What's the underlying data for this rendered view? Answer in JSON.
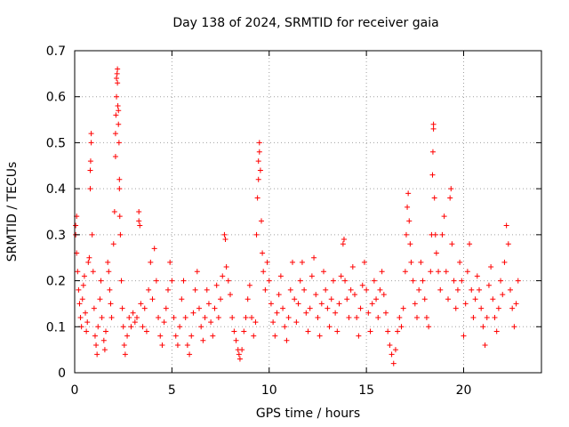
{
  "chart_data": {
    "type": "scatter",
    "title": "Day 138 of 2024, SRMTID for receiver gaia",
    "xlabel": "GPS time / hours",
    "ylabel": "SRMTID / TECUs",
    "xlim": [
      0,
      24
    ],
    "ylim": [
      0,
      0.7
    ],
    "x_ticks": [
      0,
      5,
      10,
      15,
      20
    ],
    "x_tick_labels": [
      "0",
      "5",
      "10",
      "15",
      "20"
    ],
    "y_ticks": [
      0,
      0.1,
      0.2,
      0.3,
      0.4,
      0.5,
      0.6,
      0.7
    ],
    "y_tick_labels": [
      "0",
      "0.1",
      "0.2",
      "0.3",
      "0.4",
      "0.5",
      "0.6",
      "0.7"
    ],
    "grid": true,
    "marker": "+",
    "series": [
      {
        "name": "SRMTID",
        "color": "#ff0000",
        "points": [
          [
            0.05,
            0.32
          ],
          [
            0.05,
            0.3
          ],
          [
            0.1,
            0.34
          ],
          [
            0.1,
            0.26
          ],
          [
            0.15,
            0.22
          ],
          [
            0.2,
            0.18
          ],
          [
            0.25,
            0.15
          ],
          [
            0.3,
            0.12
          ],
          [
            0.35,
            0.1
          ],
          [
            0.4,
            0.16
          ],
          [
            0.45,
            0.19
          ],
          [
            0.5,
            0.21
          ],
          [
            0.55,
            0.13
          ],
          [
            0.6,
            0.09
          ],
          [
            0.65,
            0.11
          ],
          [
            0.7,
            0.24
          ],
          [
            0.75,
            0.25
          ],
          [
            0.8,
            0.4
          ],
          [
            0.8,
            0.44
          ],
          [
            0.82,
            0.46
          ],
          [
            0.85,
            0.5
          ],
          [
            0.85,
            0.52
          ],
          [
            0.9,
            0.3
          ],
          [
            0.95,
            0.22
          ],
          [
            1.0,
            0.14
          ],
          [
            1.05,
            0.08
          ],
          [
            1.1,
            0.06
          ],
          [
            1.15,
            0.04
          ],
          [
            1.2,
            0.1
          ],
          [
            1.3,
            0.16
          ],
          [
            1.35,
            0.2
          ],
          [
            1.4,
            0.12
          ],
          [
            1.5,
            0.07
          ],
          [
            1.55,
            0.05
          ],
          [
            1.6,
            0.09
          ],
          [
            1.7,
            0.24
          ],
          [
            1.75,
            0.22
          ],
          [
            1.8,
            0.18
          ],
          [
            1.85,
            0.15
          ],
          [
            1.9,
            0.12
          ],
          [
            2.0,
            0.28
          ],
          [
            2.05,
            0.35
          ],
          [
            2.1,
            0.47
          ],
          [
            2.1,
            0.52
          ],
          [
            2.12,
            0.56
          ],
          [
            2.15,
            0.6
          ],
          [
            2.15,
            0.64
          ],
          [
            2.18,
            0.65
          ],
          [
            2.2,
            0.66
          ],
          [
            2.2,
            0.63
          ],
          [
            2.22,
            0.58
          ],
          [
            2.25,
            0.57
          ],
          [
            2.25,
            0.54
          ],
          [
            2.28,
            0.5
          ],
          [
            2.3,
            0.42
          ],
          [
            2.3,
            0.4
          ],
          [
            2.32,
            0.34
          ],
          [
            2.35,
            0.3
          ],
          [
            2.4,
            0.2
          ],
          [
            2.45,
            0.14
          ],
          [
            2.5,
            0.1
          ],
          [
            2.55,
            0.06
          ],
          [
            2.6,
            0.04
          ],
          [
            2.7,
            0.08
          ],
          [
            2.8,
            0.12
          ],
          [
            2.9,
            0.1
          ],
          [
            3.0,
            0.13
          ],
          [
            3.1,
            0.11
          ],
          [
            3.2,
            0.12
          ],
          [
            3.3,
            0.35
          ],
          [
            3.3,
            0.33
          ],
          [
            3.35,
            0.32
          ],
          [
            3.4,
            0.15
          ],
          [
            3.5,
            0.1
          ],
          [
            3.6,
            0.14
          ],
          [
            3.7,
            0.09
          ],
          [
            3.8,
            0.18
          ],
          [
            3.9,
            0.24
          ],
          [
            4.0,
            0.16
          ],
          [
            4.1,
            0.27
          ],
          [
            4.2,
            0.2
          ],
          [
            4.3,
            0.12
          ],
          [
            4.4,
            0.08
          ],
          [
            4.5,
            0.06
          ],
          [
            4.6,
            0.11
          ],
          [
            4.7,
            0.14
          ],
          [
            4.8,
            0.18
          ],
          [
            4.9,
            0.24
          ],
          [
            5.0,
            0.2
          ],
          [
            5.1,
            0.12
          ],
          [
            5.2,
            0.08
          ],
          [
            5.3,
            0.06
          ],
          [
            5.4,
            0.1
          ],
          [
            5.5,
            0.16
          ],
          [
            5.6,
            0.2
          ],
          [
            5.7,
            0.12
          ],
          [
            5.8,
            0.06
          ],
          [
            5.9,
            0.04
          ],
          [
            6.0,
            0.08
          ],
          [
            6.1,
            0.13
          ],
          [
            6.2,
            0.18
          ],
          [
            6.3,
            0.22
          ],
          [
            6.4,
            0.14
          ],
          [
            6.5,
            0.1
          ],
          [
            6.6,
            0.07
          ],
          [
            6.7,
            0.12
          ],
          [
            6.8,
            0.18
          ],
          [
            6.9,
            0.15
          ],
          [
            7.0,
            0.11
          ],
          [
            7.1,
            0.08
          ],
          [
            7.2,
            0.14
          ],
          [
            7.3,
            0.19
          ],
          [
            7.4,
            0.12
          ],
          [
            7.5,
            0.16
          ],
          [
            7.6,
            0.21
          ],
          [
            7.7,
            0.3
          ],
          [
            7.75,
            0.29
          ],
          [
            7.8,
            0.23
          ],
          [
            7.9,
            0.2
          ],
          [
            8.0,
            0.17
          ],
          [
            8.1,
            0.12
          ],
          [
            8.2,
            0.09
          ],
          [
            8.3,
            0.07
          ],
          [
            8.4,
            0.05
          ],
          [
            8.45,
            0.04
          ],
          [
            8.5,
            0.03
          ],
          [
            8.6,
            0.05
          ],
          [
            8.7,
            0.09
          ],
          [
            8.8,
            0.12
          ],
          [
            8.9,
            0.16
          ],
          [
            9.0,
            0.19
          ],
          [
            9.1,
            0.12
          ],
          [
            9.2,
            0.08
          ],
          [
            9.3,
            0.11
          ],
          [
            9.35,
            0.3
          ],
          [
            9.4,
            0.38
          ],
          [
            9.45,
            0.42
          ],
          [
            9.45,
            0.46
          ],
          [
            9.5,
            0.5
          ],
          [
            9.5,
            0.48
          ],
          [
            9.55,
            0.44
          ],
          [
            9.6,
            0.33
          ],
          [
            9.65,
            0.26
          ],
          [
            9.7,
            0.22
          ],
          [
            9.8,
            0.18
          ],
          [
            9.9,
            0.24
          ],
          [
            10.0,
            0.2
          ],
          [
            10.1,
            0.15
          ],
          [
            10.2,
            0.11
          ],
          [
            10.3,
            0.08
          ],
          [
            10.4,
            0.13
          ],
          [
            10.5,
            0.17
          ],
          [
            10.6,
            0.21
          ],
          [
            10.7,
            0.14
          ],
          [
            10.8,
            0.1
          ],
          [
            10.9,
            0.07
          ],
          [
            11.0,
            0.12
          ],
          [
            11.1,
            0.18
          ],
          [
            11.2,
            0.24
          ],
          [
            11.3,
            0.16
          ],
          [
            11.4,
            0.11
          ],
          [
            11.5,
            0.15
          ],
          [
            11.6,
            0.2
          ],
          [
            11.7,
            0.24
          ],
          [
            11.8,
            0.18
          ],
          [
            11.9,
            0.13
          ],
          [
            12.0,
            0.09
          ],
          [
            12.1,
            0.14
          ],
          [
            12.2,
            0.21
          ],
          [
            12.3,
            0.25
          ],
          [
            12.4,
            0.17
          ],
          [
            12.5,
            0.12
          ],
          [
            12.6,
            0.08
          ],
          [
            12.7,
            0.15
          ],
          [
            12.8,
            0.22
          ],
          [
            12.9,
            0.18
          ],
          [
            13.0,
            0.14
          ],
          [
            13.1,
            0.1
          ],
          [
            13.2,
            0.16
          ],
          [
            13.3,
            0.2
          ],
          [
            13.4,
            0.13
          ],
          [
            13.5,
            0.09
          ],
          [
            13.6,
            0.15
          ],
          [
            13.7,
            0.21
          ],
          [
            13.8,
            0.28
          ],
          [
            13.85,
            0.29
          ],
          [
            13.9,
            0.2
          ],
          [
            14.0,
            0.16
          ],
          [
            14.1,
            0.12
          ],
          [
            14.2,
            0.18
          ],
          [
            14.3,
            0.23
          ],
          [
            14.4,
            0.17
          ],
          [
            14.5,
            0.12
          ],
          [
            14.6,
            0.08
          ],
          [
            14.7,
            0.14
          ],
          [
            14.8,
            0.19
          ],
          [
            14.9,
            0.24
          ],
          [
            15.0,
            0.18
          ],
          [
            15.1,
            0.13
          ],
          [
            15.2,
            0.09
          ],
          [
            15.3,
            0.15
          ],
          [
            15.4,
            0.2
          ],
          [
            15.5,
            0.16
          ],
          [
            15.6,
            0.12
          ],
          [
            15.7,
            0.18
          ],
          [
            15.8,
            0.22
          ],
          [
            15.9,
            0.17
          ],
          [
            16.0,
            0.13
          ],
          [
            16.1,
            0.09
          ],
          [
            16.2,
            0.06
          ],
          [
            16.3,
            0.04
          ],
          [
            16.4,
            0.02
          ],
          [
            16.5,
            0.05
          ],
          [
            16.6,
            0.09
          ],
          [
            16.7,
            0.12
          ],
          [
            16.8,
            0.1
          ],
          [
            16.9,
            0.14
          ],
          [
            17.0,
            0.22
          ],
          [
            17.05,
            0.3
          ],
          [
            17.1,
            0.36
          ],
          [
            17.15,
            0.39
          ],
          [
            17.2,
            0.33
          ],
          [
            17.25,
            0.28
          ],
          [
            17.3,
            0.24
          ],
          [
            17.4,
            0.2
          ],
          [
            17.5,
            0.15
          ],
          [
            17.6,
            0.12
          ],
          [
            17.7,
            0.18
          ],
          [
            17.8,
            0.24
          ],
          [
            17.9,
            0.2
          ],
          [
            18.0,
            0.16
          ],
          [
            18.1,
            0.12
          ],
          [
            18.2,
            0.1
          ],
          [
            18.3,
            0.22
          ],
          [
            18.35,
            0.3
          ],
          [
            18.4,
            0.43
          ],
          [
            18.42,
            0.48
          ],
          [
            18.45,
            0.53
          ],
          [
            18.45,
            0.54
          ],
          [
            18.5,
            0.38
          ],
          [
            18.55,
            0.3
          ],
          [
            18.6,
            0.26
          ],
          [
            18.7,
            0.22
          ],
          [
            18.8,
            0.18
          ],
          [
            18.9,
            0.3
          ],
          [
            19.0,
            0.34
          ],
          [
            19.1,
            0.22
          ],
          [
            19.2,
            0.16
          ],
          [
            19.3,
            0.38
          ],
          [
            19.35,
            0.4
          ],
          [
            19.4,
            0.28
          ],
          [
            19.5,
            0.2
          ],
          [
            19.6,
            0.14
          ],
          [
            19.7,
            0.18
          ],
          [
            19.8,
            0.24
          ],
          [
            19.9,
            0.2
          ],
          [
            20.0,
            0.08
          ],
          [
            20.1,
            0.15
          ],
          [
            20.2,
            0.22
          ],
          [
            20.3,
            0.28
          ],
          [
            20.4,
            0.18
          ],
          [
            20.5,
            0.12
          ],
          [
            20.6,
            0.16
          ],
          [
            20.7,
            0.21
          ],
          [
            20.8,
            0.18
          ],
          [
            20.9,
            0.14
          ],
          [
            21.0,
            0.1
          ],
          [
            21.1,
            0.06
          ],
          [
            21.2,
            0.12
          ],
          [
            21.3,
            0.19
          ],
          [
            21.4,
            0.23
          ],
          [
            21.5,
            0.16
          ],
          [
            21.6,
            0.12
          ],
          [
            21.7,
            0.09
          ],
          [
            21.8,
            0.14
          ],
          [
            21.9,
            0.2
          ],
          [
            22.0,
            0.17
          ],
          [
            22.1,
            0.24
          ],
          [
            22.2,
            0.32
          ],
          [
            22.3,
            0.28
          ],
          [
            22.4,
            0.18
          ],
          [
            22.5,
            0.14
          ],
          [
            22.6,
            0.1
          ],
          [
            22.7,
            0.15
          ],
          [
            22.8,
            0.2
          ]
        ]
      }
    ]
  }
}
